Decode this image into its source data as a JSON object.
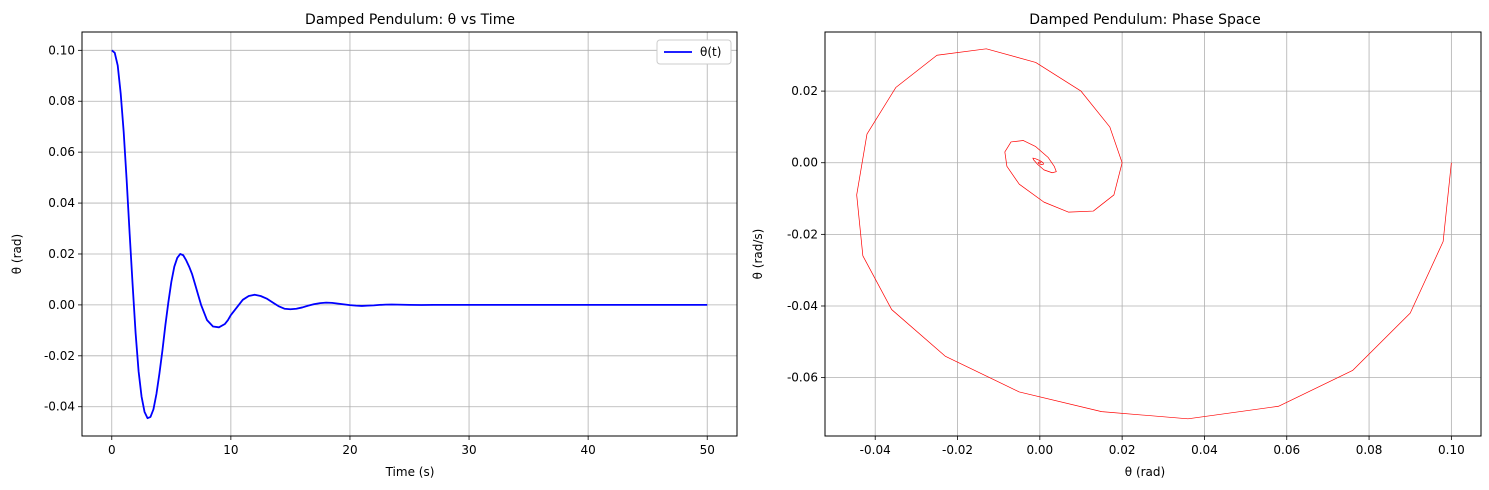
{
  "chart_data": [
    {
      "type": "line",
      "title": "Damped Pendulum: θ vs Time",
      "xlabel": "Time (s)",
      "ylabel": "θ (rad)",
      "xlim": [
        -2.5,
        52.5
      ],
      "ylim": [
        -0.0515,
        0.1072
      ],
      "xticks": [
        0,
        10,
        20,
        30,
        40,
        50
      ],
      "yticks": [
        -0.04,
        -0.02,
        0.0,
        0.02,
        0.04,
        0.06,
        0.08,
        0.1
      ],
      "grid": true,
      "legend": "top-right",
      "series": [
        {
          "name": "θ(t)",
          "color": "#0000ff",
          "x": [
            0,
            0.25,
            0.5,
            0.75,
            1.0,
            1.25,
            1.5,
            1.75,
            2.0,
            2.25,
            2.5,
            2.75,
            3.0,
            3.25,
            3.5,
            3.75,
            4.0,
            4.25,
            4.5,
            4.75,
            5.0,
            5.25,
            5.5,
            5.75,
            6.0,
            6.25,
            6.5,
            6.75,
            7.0,
            7.25,
            7.5,
            7.75,
            8.0,
            8.5,
            9.0,
            9.5,
            9.75,
            10.0,
            10.5,
            11.0,
            11.5,
            12.0,
            12.5,
            13.0,
            13.5,
            14.0,
            14.5,
            15.0,
            15.5,
            16.0,
            16.5,
            17.0,
            17.5,
            18.0,
            18.5,
            19.0,
            19.5,
            20.0,
            20.5,
            21.0,
            21.5,
            22.0,
            22.5,
            23.0,
            23.5,
            24.0,
            25.0,
            26.0,
            27.0,
            28.0,
            29.0,
            30.0,
            32.0,
            34.0,
            36.0,
            38.0,
            40.0,
            42.0,
            44.0,
            46.0,
            48.0,
            50.0
          ],
          "y": [
            0.1,
            0.099,
            0.094,
            0.083,
            0.068,
            0.049,
            0.028,
            0.008,
            -0.011,
            -0.026,
            -0.036,
            -0.042,
            -0.0445,
            -0.044,
            -0.041,
            -0.035,
            -0.027,
            -0.018,
            -0.008,
            0.001,
            0.009,
            0.015,
            0.0185,
            0.02,
            0.0195,
            0.0175,
            0.015,
            0.012,
            0.008,
            0.004,
            0.0,
            -0.003,
            -0.006,
            -0.0085,
            -0.0088,
            -0.0075,
            -0.006,
            -0.004,
            -0.001,
            0.002,
            0.0035,
            0.004,
            0.0035,
            0.0025,
            0.001,
            -0.0005,
            -0.0015,
            -0.0017,
            -0.0015,
            -0.001,
            -0.0003,
            0.0003,
            0.0007,
            0.0009,
            0.0008,
            0.0005,
            0.0002,
            -0.0001,
            -0.0003,
            -0.0004,
            -0.0003,
            -0.0002,
            0.0,
            0.0001,
            0.00015,
            0.00012,
            0.0,
            -5e-05,
            0.0,
            2e-05,
            0.0,
            0.0,
            0.0,
            0.0,
            0.0,
            0.0,
            0.0,
            0.0,
            0.0,
            0.0,
            0.0,
            0.0
          ]
        }
      ]
    },
    {
      "type": "line",
      "title": "Damped Pendulum: Phase Space",
      "xlabel": "θ (rad)",
      "ylabel": "θ (rad/s)",
      "xlim": [
        -0.0522,
        0.1072
      ],
      "ylim": [
        -0.0763,
        0.0365
      ],
      "xticks": [
        -0.04,
        -0.02,
        0.0,
        0.02,
        0.04,
        0.06,
        0.08,
        0.1
      ],
      "yticks": [
        -0.06,
        -0.04,
        -0.02,
        0.0,
        0.02
      ],
      "grid": true,
      "series": [
        {
          "color": "#ff0000",
          "x": [
            0.1,
            0.098,
            0.09,
            0.076,
            0.058,
            0.036,
            0.015,
            -0.005,
            -0.023,
            -0.036,
            -0.043,
            -0.0445,
            -0.042,
            -0.035,
            -0.025,
            -0.013,
            -0.001,
            0.01,
            0.017,
            0.02,
            0.018,
            0.013,
            0.007,
            0.001,
            -0.005,
            -0.008,
            -0.0085,
            -0.007,
            -0.004,
            -0.001,
            0.002,
            0.0035,
            0.004,
            0.003,
            0.001,
            -0.0005,
            -0.0015,
            -0.0017,
            -0.001,
            0.0,
            0.0008,
            0.0009,
            0.0004,
            -0.0002,
            -0.0004,
            -0.0002,
            0.0001,
            0.00015,
            0.0
          ],
          "y": [
            0.0,
            -0.022,
            -0.042,
            -0.058,
            -0.068,
            -0.0715,
            -0.0695,
            -0.064,
            -0.054,
            -0.041,
            -0.026,
            -0.009,
            0.008,
            0.021,
            0.03,
            0.0318,
            0.028,
            0.02,
            0.01,
            0.0,
            -0.009,
            -0.0135,
            -0.0138,
            -0.011,
            -0.006,
            -0.001,
            0.003,
            0.0058,
            0.0062,
            0.0045,
            0.0015,
            -0.001,
            -0.0025,
            -0.0028,
            -0.002,
            -0.0005,
            0.0008,
            0.0013,
            0.0011,
            0.0006,
            0.0,
            -0.0004,
            -0.0005,
            -0.0003,
            0.0,
            0.0002,
            0.0002,
            0.0,
            0.0
          ]
        }
      ]
    }
  ]
}
